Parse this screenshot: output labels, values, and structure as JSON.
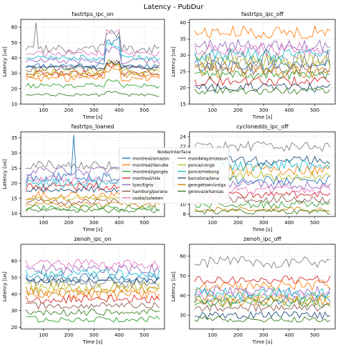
{
  "figure_title": "Latency - PubDur",
  "legend": {
    "title": "Node/interface",
    "placement": "center",
    "entries": [
      {
        "label": "montreal/amazon",
        "color": "#1f77b4"
      },
      {
        "label": "montreal/danube",
        "color": "#ff7f0e"
      },
      {
        "label": "montreal/ganges",
        "color": "#2ca02c"
      },
      {
        "label": "montreal/nile",
        "color": "#d62728"
      },
      {
        "label": "lyon/tigris",
        "color": "#9467bd"
      },
      {
        "label": "hamburg/parana",
        "color": "#8c564b"
      },
      {
        "label": "osaka/salween",
        "color": "#e377c2"
      },
      {
        "label": "mandalay/missouri",
        "color": "#7f7f7f"
      },
      {
        "label": "ponce/congo",
        "color": "#bcbd22"
      },
      {
        "label": "ponce/mekong",
        "color": "#17becf"
      },
      {
        "label": "barcelona/lena",
        "color": "#1f4e79"
      },
      {
        "label": "georgetown/volga",
        "color": "#d4860b"
      },
      {
        "label": "geneva/arkansas",
        "color": "#3a7d1e"
      }
    ]
  },
  "chart_data": [
    {
      "type": "line",
      "title": "fastrtps_ipc_on",
      "xlabel": "Time [s]",
      "ylabel": "Latency [us]",
      "xlim": [
        10,
        580
      ],
      "ylim": [
        10,
        65
      ],
      "xticks": [
        100,
        200,
        300,
        400,
        500
      ],
      "yticks": [
        10,
        20,
        30,
        40,
        50,
        60
      ],
      "grid": true,
      "x_start": 30,
      "x_end": 560,
      "x_step": 10,
      "series_levels": [
        {
          "name": "montreal/amazon",
          "level": 35,
          "noise": 2,
          "bump": 18
        },
        {
          "name": "montreal/danube",
          "level": 27,
          "noise": 2.5,
          "bump": 10
        },
        {
          "name": "montreal/ganges",
          "level": 22,
          "noise": 1.5,
          "bump": 4
        },
        {
          "name": "montreal/nile",
          "level": 30,
          "noise": 2,
          "bump": 6
        },
        {
          "name": "lyon/tigris",
          "level": 38,
          "noise": 2,
          "bump": 8
        },
        {
          "name": "hamburg/parana",
          "level": 33,
          "noise": 2,
          "bump": 5
        },
        {
          "name": "osaka/salween",
          "level": 43,
          "noise": 2,
          "bump": 15
        },
        {
          "name": "mandalay/missouri",
          "level": 46,
          "noise": 3,
          "bump": 12,
          "spike": [
            70,
            63
          ]
        },
        {
          "name": "ponce/congo",
          "level": 31,
          "noise": 2,
          "bump": 6
        },
        {
          "name": "ponce/mekong",
          "level": 40,
          "noise": 2,
          "bump": 10
        },
        {
          "name": "barcelona/lena",
          "level": 34,
          "noise": 1.5,
          "bump": 3
        },
        {
          "name": "georgetown/volga",
          "level": 29,
          "noise": 2,
          "bump": 4
        },
        {
          "name": "geneva/arkansas",
          "level": 16,
          "noise": 1,
          "bump": 2
        }
      ]
    },
    {
      "type": "line",
      "title": "fastrtps_ipc_off",
      "xlabel": "Time [s]",
      "ylabel": "Latency [us]",
      "xlim": [
        10,
        580
      ],
      "ylim": [
        15,
        41
      ],
      "xticks": [
        100,
        200,
        300,
        400,
        500
      ],
      "yticks": [
        15,
        20,
        25,
        30,
        35,
        40
      ],
      "grid": true,
      "x_start": 30,
      "x_end": 560,
      "x_step": 10,
      "series_levels": [
        {
          "name": "montreal/amazon",
          "level": 27,
          "noise": 2,
          "bump": 0
        },
        {
          "name": "montreal/danube",
          "level": 37,
          "noise": 2,
          "bump": 0
        },
        {
          "name": "montreal/ganges",
          "level": 24,
          "noise": 1.5,
          "bump": 0
        },
        {
          "name": "montreal/nile",
          "level": 22,
          "noise": 1.5,
          "bump": 0
        },
        {
          "name": "lyon/tigris",
          "level": 33,
          "noise": 2,
          "bump": 0
        },
        {
          "name": "hamburg/parana",
          "level": 26,
          "noise": 2,
          "bump": 0
        },
        {
          "name": "osaka/salween",
          "level": 32,
          "noise": 2,
          "bump": 0
        },
        {
          "name": "mandalay/missouri",
          "level": 29,
          "noise": 3,
          "bump": 0
        },
        {
          "name": "ponce/congo",
          "level": 28,
          "noise": 2,
          "bump": 0
        },
        {
          "name": "ponce/mekong",
          "level": 30,
          "noise": 2,
          "bump": 0
        },
        {
          "name": "barcelona/lena",
          "level": 20,
          "noise": 1.5,
          "bump": 0
        },
        {
          "name": "georgetown/volga",
          "level": 25,
          "noise": 2,
          "bump": 0
        },
        {
          "name": "geneva/arkansas",
          "level": 19,
          "noise": 1,
          "bump": 0
        }
      ]
    },
    {
      "type": "line",
      "title": "fastrtps_loaned",
      "xlabel": "Time [s]",
      "ylabel": "Latency [us]",
      "xlim": [
        10,
        580
      ],
      "ylim": [
        9,
        37
      ],
      "xticks": [
        100,
        200,
        300,
        400,
        500
      ],
      "yticks": [
        10,
        15,
        20,
        25,
        30,
        35
      ],
      "grid": true,
      "x_start": 30,
      "x_end": 560,
      "x_step": 10,
      "series_levels": [
        {
          "name": "montreal/amazon",
          "level": 22,
          "noise": 1.5,
          "bump": 0,
          "spike": [
            220,
            36
          ]
        },
        {
          "name": "montreal/danube",
          "level": 16,
          "noise": 1.5,
          "bump": 0
        },
        {
          "name": "montreal/ganges",
          "level": 12,
          "noise": 1,
          "bump": 0
        },
        {
          "name": "montreal/nile",
          "level": 19,
          "noise": 1.5,
          "bump": 0
        },
        {
          "name": "lyon/tigris",
          "level": 24,
          "noise": 1.5,
          "bump": 0
        },
        {
          "name": "hamburg/parana",
          "level": 14,
          "noise": 1,
          "bump": 0
        },
        {
          "name": "osaka/salween",
          "level": 21,
          "noise": 1.5,
          "bump": 0
        },
        {
          "name": "mandalay/missouri",
          "level": 26,
          "noise": 1.5,
          "bump": 0
        },
        {
          "name": "ponce/congo",
          "level": 15,
          "noise": 1,
          "bump": 0
        },
        {
          "name": "ponce/mekong",
          "level": 20,
          "noise": 1.5,
          "bump": 0
        },
        {
          "name": "barcelona/lena",
          "level": 18,
          "noise": 1,
          "bump": 0
        },
        {
          "name": "georgetown/volga",
          "level": 13,
          "noise": 1,
          "bump": 0
        },
        {
          "name": "geneva/arkansas",
          "level": 11,
          "noise": 0.8,
          "bump": 0
        }
      ]
    },
    {
      "type": "line",
      "title": "cyclonedds_ipc_off",
      "xlabel": "Time [s]",
      "ylabel": "Latency [us]",
      "xlim": [
        10,
        580
      ],
      "ylim": [
        7.5,
        25
      ],
      "xticks": [
        100,
        200,
        300,
        400,
        500
      ],
      "yticks": [
        8,
        10,
        12,
        14,
        16,
        18,
        20,
        22,
        24
      ],
      "grid": true,
      "x_start": 30,
      "x_end": 560,
      "x_step": 10,
      "series_levels": [
        {
          "name": "montreal/amazon",
          "level": 15,
          "noise": 1,
          "bump": 0
        },
        {
          "name": "montreal/danube",
          "level": 17,
          "noise": 1.2,
          "bump": 0
        },
        {
          "name": "montreal/ganges",
          "level": 10,
          "noise": 0.8,
          "bump": 0
        },
        {
          "name": "montreal/nile",
          "level": 12,
          "noise": 0.8,
          "bump": 0
        },
        {
          "name": "lyon/tigris",
          "level": 14,
          "noise": 1,
          "bump": 0
        },
        {
          "name": "hamburg/parana",
          "level": 11,
          "noise": 0.8,
          "bump": 0
        },
        {
          "name": "osaka/salween",
          "level": 13,
          "noise": 1,
          "bump": 0
        },
        {
          "name": "mandalay/missouri",
          "level": 22,
          "noise": 1,
          "bump": 0
        },
        {
          "name": "ponce/congo",
          "level": 16,
          "noise": 1,
          "bump": 0
        },
        {
          "name": "ponce/mekong",
          "level": 18,
          "noise": 1.2,
          "bump": 0
        },
        {
          "name": "barcelona/lena",
          "level": 19,
          "noise": 1,
          "bump": 0
        },
        {
          "name": "georgetown/volga",
          "level": 9,
          "noise": 0.6,
          "bump": 0
        },
        {
          "name": "geneva/arkansas",
          "level": 8.5,
          "noise": 0.5,
          "bump": 0
        }
      ]
    },
    {
      "type": "line",
      "title": "zenoh_ipc_on",
      "xlabel": "Time [s]",
      "ylabel": "Latency [us]",
      "xlim": [
        10,
        580
      ],
      "ylim": [
        19,
        70
      ],
      "xticks": [
        100,
        200,
        300,
        400,
        500
      ],
      "yticks": [
        20,
        30,
        40,
        50,
        60
      ],
      "grid": true,
      "x_start": 30,
      "x_end": 560,
      "x_step": 10,
      "series_levels": [
        {
          "name": "montreal/amazon",
          "level": 50,
          "noise": 3,
          "bump": 0
        },
        {
          "name": "montreal/danube",
          "level": 40,
          "noise": 3,
          "bump": 0
        },
        {
          "name": "montreal/ganges",
          "level": 25,
          "noise": 2,
          "bump": 0
        },
        {
          "name": "montreal/nile",
          "level": 37,
          "noise": 2.5,
          "bump": 0
        },
        {
          "name": "lyon/tigris",
          "level": 55,
          "noise": 3,
          "bump": 0
        },
        {
          "name": "hamburg/parana",
          "level": 33,
          "noise": 2,
          "bump": 0
        },
        {
          "name": "osaka/salween",
          "level": 58,
          "noise": 3,
          "bump": 0
        },
        {
          "name": "mandalay/missouri",
          "level": 47,
          "noise": 3,
          "bump": 0
        },
        {
          "name": "ponce/congo",
          "level": 44,
          "noise": 3,
          "bump": 0
        },
        {
          "name": "ponce/mekong",
          "level": 52,
          "noise": 3,
          "bump": 0
        },
        {
          "name": "barcelona/lena",
          "level": 48,
          "noise": 2,
          "bump": 0
        },
        {
          "name": "georgetown/volga",
          "level": 42,
          "noise": 3,
          "bump": 0
        },
        {
          "name": "geneva/arkansas",
          "level": 29,
          "noise": 2,
          "bump": 0
        }
      ]
    },
    {
      "type": "line",
      "title": "zenoh_ipc_off",
      "xlabel": "Time [s]",
      "ylabel": "Latency [us]",
      "xlim": [
        10,
        580
      ],
      "ylim": [
        23,
        66
      ],
      "xticks": [
        100,
        200,
        300,
        400,
        500
      ],
      "yticks": [
        30,
        40,
        50,
        60
      ],
      "grid": true,
      "x_start": 30,
      "x_end": 560,
      "x_step": 10,
      "series_levels": [
        {
          "name": "montreal/amazon",
          "level": 38,
          "noise": 2.5,
          "bump": 0
        },
        {
          "name": "montreal/danube",
          "level": 45,
          "noise": 3,
          "bump": 0
        },
        {
          "name": "montreal/ganges",
          "level": 36,
          "noise": 2,
          "bump": 0
        },
        {
          "name": "montreal/nile",
          "level": 48,
          "noise": 2,
          "bump": 0
        },
        {
          "name": "lyon/tigris",
          "level": 42,
          "noise": 2.5,
          "bump": 0
        },
        {
          "name": "hamburg/parana",
          "level": 34,
          "noise": 2,
          "bump": 0
        },
        {
          "name": "osaka/salween",
          "level": 40,
          "noise": 2.5,
          "bump": 0
        },
        {
          "name": "mandalay/missouri",
          "level": 57,
          "noise": 3,
          "bump": 0
        },
        {
          "name": "ponce/congo",
          "level": 39,
          "noise": 2.5,
          "bump": 0
        },
        {
          "name": "ponce/mekong",
          "level": 41,
          "noise": 3,
          "bump": 0
        },
        {
          "name": "barcelona/lena",
          "level": 30,
          "noise": 2,
          "bump": 0
        },
        {
          "name": "georgetown/volga",
          "level": 37,
          "noise": 2.5,
          "bump": 0
        },
        {
          "name": "geneva/arkansas",
          "level": 28,
          "noise": 1.5,
          "bump": 0
        }
      ]
    }
  ]
}
